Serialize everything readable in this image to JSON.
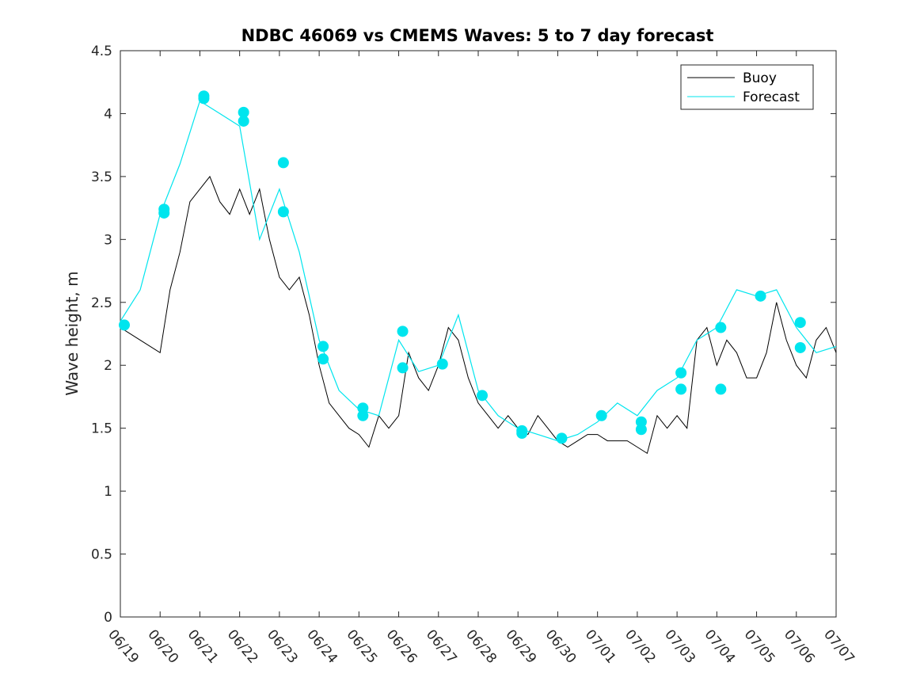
{
  "chart_data": {
    "type": "line",
    "title": "NDBC 46069 vs CMEMS Waves: 5 to 7 day forecast",
    "ylabel": "Wave height, m",
    "xlabel": "",
    "xlim": [
      "2024-06-19",
      "2024-07-07"
    ],
    "ylim": [
      0,
      4.5
    ],
    "yticks": [
      0,
      0.5,
      1,
      1.5,
      2,
      2.5,
      3,
      3.5,
      4,
      4.5
    ],
    "ytick_labels": [
      "0",
      "0.5",
      "1",
      "1.5",
      "2",
      "2.5",
      "3",
      "3.5",
      "4",
      "4.5"
    ],
    "xticks": [
      "2024-06-19",
      "2024-06-20",
      "2024-06-21",
      "2024-06-22",
      "2024-06-23",
      "2024-06-24",
      "2024-06-25",
      "2024-06-26",
      "2024-06-27",
      "2024-06-28",
      "2024-06-29",
      "2024-06-30",
      "2024-07-01",
      "2024-07-02",
      "2024-07-03",
      "2024-07-04",
      "2024-07-05",
      "2024-07-06",
      "2024-07-07"
    ],
    "xtick_labels": [
      "06/19",
      "06/20",
      "06/21",
      "06/22",
      "06/23",
      "06/24",
      "06/25",
      "06/26",
      "06/27",
      "06/28",
      "06/29",
      "06/30",
      "07/01",
      "07/02",
      "07/03",
      "07/04",
      "07/05",
      "07/06",
      "07/07"
    ],
    "grid": false,
    "legend": {
      "position": "top-right",
      "entries": [
        {
          "label": "Buoy",
          "color": "#000000"
        },
        {
          "label": "Forecast",
          "color": "#00e5ee"
        }
      ]
    },
    "colors": {
      "buoy": "#000000",
      "forecast": "#00e5ee",
      "axes": "#262626"
    },
    "series": [
      {
        "name": "Buoy",
        "x": [
          "2024-06-19",
          "2024-06-19 12:00",
          "2024-06-20",
          "2024-06-20 06:00",
          "2024-06-20 12:00",
          "2024-06-20 18:00",
          "2024-06-21",
          "2024-06-21 06:00",
          "2024-06-21 12:00",
          "2024-06-21 18:00",
          "2024-06-22",
          "2024-06-22 06:00",
          "2024-06-22 12:00",
          "2024-06-22 18:00",
          "2024-06-23",
          "2024-06-23 06:00",
          "2024-06-23 12:00",
          "2024-06-23 18:00",
          "2024-06-24",
          "2024-06-24 06:00",
          "2024-06-24 12:00",
          "2024-06-24 18:00",
          "2024-06-25",
          "2024-06-25 06:00",
          "2024-06-25 12:00",
          "2024-06-25 18:00",
          "2024-06-26",
          "2024-06-26 06:00",
          "2024-06-26 12:00",
          "2024-06-26 18:00",
          "2024-06-27",
          "2024-06-27 06:00",
          "2024-06-27 12:00",
          "2024-06-27 18:00",
          "2024-06-28",
          "2024-06-28 06:00",
          "2024-06-28 12:00",
          "2024-06-28 18:00",
          "2024-06-29",
          "2024-06-29 06:00",
          "2024-06-29 12:00",
          "2024-06-29 18:00",
          "2024-06-30",
          "2024-06-30 06:00",
          "2024-06-30 12:00",
          "2024-06-30 18:00",
          "2024-07-01",
          "2024-07-01 06:00",
          "2024-07-01 12:00",
          "2024-07-01 18:00",
          "2024-07-02",
          "2024-07-02 06:00",
          "2024-07-02 12:00",
          "2024-07-02 18:00",
          "2024-07-03",
          "2024-07-03 06:00",
          "2024-07-03 12:00",
          "2024-07-03 18:00",
          "2024-07-04",
          "2024-07-04 06:00",
          "2024-07-04 12:00",
          "2024-07-04 18:00",
          "2024-07-05",
          "2024-07-05 06:00",
          "2024-07-05 12:00",
          "2024-07-05 18:00",
          "2024-07-06",
          "2024-07-06 06:00",
          "2024-07-06 12:00",
          "2024-07-06 18:00",
          "2024-07-07"
        ],
        "y": [
          2.3,
          2.2,
          2.1,
          2.6,
          2.9,
          3.3,
          3.4,
          3.5,
          3.3,
          3.2,
          3.4,
          3.2,
          3.4,
          3.0,
          2.7,
          2.6,
          2.7,
          2.4,
          2.0,
          1.7,
          1.6,
          1.5,
          1.45,
          1.35,
          1.6,
          1.5,
          1.6,
          2.1,
          1.9,
          1.8,
          2.0,
          2.3,
          2.2,
          1.9,
          1.7,
          1.6,
          1.5,
          1.6,
          1.5,
          1.45,
          1.6,
          1.5,
          1.4,
          1.35,
          1.4,
          1.45,
          1.45,
          1.4,
          1.4,
          1.4,
          1.35,
          1.3,
          1.6,
          1.5,
          1.6,
          1.5,
          2.2,
          2.3,
          2.0,
          2.2,
          2.1,
          1.9,
          1.9,
          2.1,
          2.5,
          2.2,
          2.0,
          1.9,
          2.2,
          2.3,
          2.1
        ]
      },
      {
        "name": "Forecast",
        "x": [
          "2024-06-19",
          "2024-06-19 12:00",
          "2024-06-20",
          "2024-06-20 12:00",
          "2024-06-21",
          "2024-06-21 12:00",
          "2024-06-22",
          "2024-06-22 12:00",
          "2024-06-23",
          "2024-06-23 12:00",
          "2024-06-24",
          "2024-06-24 12:00",
          "2024-06-25",
          "2024-06-25 12:00",
          "2024-06-26",
          "2024-06-26 12:00",
          "2024-06-27",
          "2024-06-27 12:00",
          "2024-06-28",
          "2024-06-28 12:00",
          "2024-06-29",
          "2024-06-29 12:00",
          "2024-06-30",
          "2024-06-30 12:00",
          "2024-07-01",
          "2024-07-01 12:00",
          "2024-07-02",
          "2024-07-02 12:00",
          "2024-07-03",
          "2024-07-03 12:00",
          "2024-07-04",
          "2024-07-04 12:00",
          "2024-07-05",
          "2024-07-05 12:00",
          "2024-07-06",
          "2024-07-06 12:00",
          "2024-07-07"
        ],
        "y": [
          2.35,
          2.6,
          3.2,
          3.6,
          4.1,
          4.0,
          3.9,
          3.0,
          3.4,
          2.9,
          2.2,
          1.8,
          1.65,
          1.6,
          2.2,
          1.95,
          2.0,
          2.4,
          1.8,
          1.6,
          1.5,
          1.45,
          1.4,
          1.45,
          1.55,
          1.7,
          1.6,
          1.8,
          1.9,
          2.2,
          2.3,
          2.6,
          2.55,
          2.6,
          2.3,
          2.1,
          2.15
        ]
      }
    ],
    "forecast_markers": {
      "x": [
        "2024-06-19",
        "2024-06-20",
        "2024-06-20",
        "2024-06-21",
        "2024-06-21",
        "2024-06-22",
        "2024-06-22",
        "2024-06-23",
        "2024-06-23",
        "2024-06-24",
        "2024-06-24",
        "2024-06-25",
        "2024-06-25",
        "2024-06-26",
        "2024-06-26",
        "2024-06-27",
        "2024-06-28",
        "2024-06-29",
        "2024-06-29",
        "2024-06-30",
        "2024-07-01",
        "2024-07-02",
        "2024-07-02",
        "2024-07-03",
        "2024-07-03",
        "2024-07-04",
        "2024-07-04",
        "2024-07-05",
        "2024-07-06",
        "2024-07-06"
      ],
      "y": [
        2.32,
        3.24,
        3.21,
        4.14,
        4.12,
        4.01,
        3.94,
        3.61,
        3.22,
        2.15,
        2.05,
        1.66,
        1.6,
        2.27,
        1.98,
        2.01,
        1.76,
        1.48,
        1.46,
        1.42,
        1.6,
        1.55,
        1.49,
        1.94,
        1.81,
        2.3,
        1.81,
        2.55,
        2.34,
        2.14
      ]
    }
  }
}
